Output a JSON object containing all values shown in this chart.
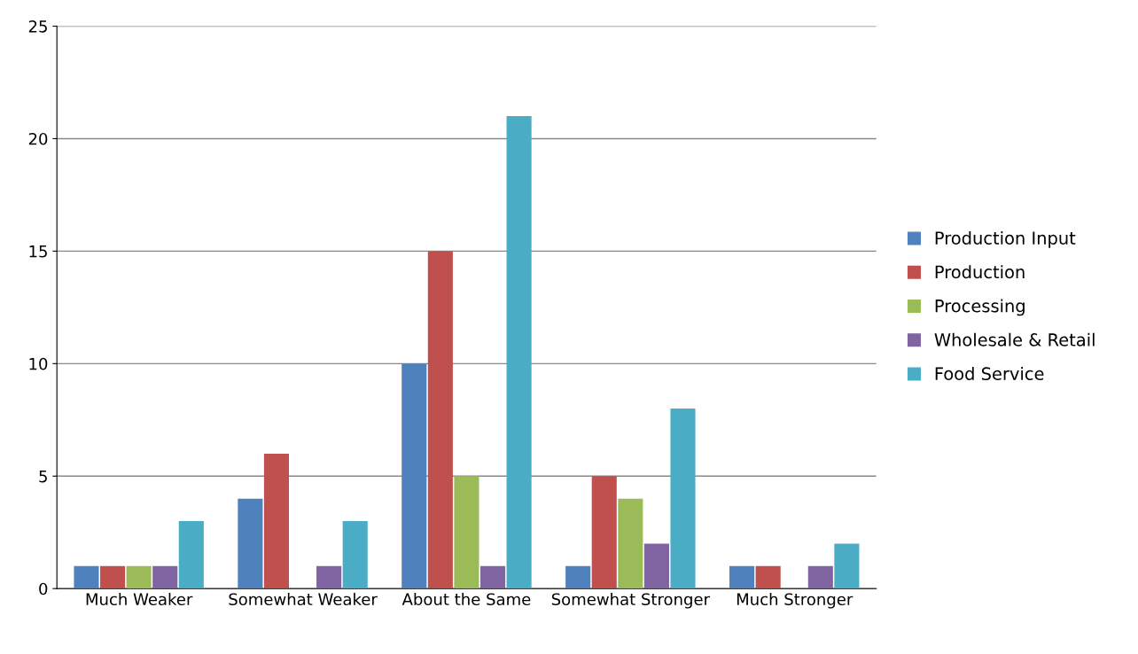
{
  "chart_data": {
    "type": "bar",
    "categories": [
      "Much Weaker",
      "Somewhat Weaker",
      "About the Same",
      "Somewhat Stronger",
      "Much Stronger"
    ],
    "series": [
      {
        "name": "Production Input",
        "color": "#4f81bd",
        "values": [
          1,
          4,
          10,
          1,
          1
        ]
      },
      {
        "name": "Production",
        "color": "#c0504d",
        "values": [
          1,
          6,
          15,
          5,
          1
        ]
      },
      {
        "name": "Processing",
        "color": "#9bbb59",
        "values": [
          1,
          0,
          5,
          4,
          0
        ]
      },
      {
        "name": "Wholesale & Retail",
        "color": "#8064a2",
        "values": [
          1,
          1,
          1,
          2,
          1
        ]
      },
      {
        "name": "Food Service",
        "color": "#4bacc6",
        "values": [
          3,
          3,
          21,
          8,
          2
        ]
      }
    ],
    "ylim": [
      0,
      25
    ],
    "yticks": [
      0,
      5,
      10,
      15,
      20,
      25
    ],
    "grid": "y",
    "legend": "right"
  }
}
